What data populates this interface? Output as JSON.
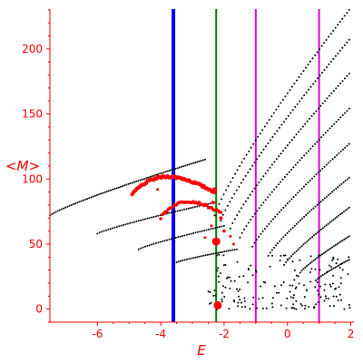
{
  "chart_data": {
    "type": "scatter",
    "title": "",
    "xlabel": "E",
    "ylabel": "<M>",
    "xlim": [
      -7.5,
      2.1
    ],
    "ylim": [
      -10,
      232
    ],
    "x_ticks": [
      -6,
      -4,
      -2,
      0,
      2
    ],
    "y_ticks": [
      0,
      50,
      100,
      150,
      200
    ],
    "grid": false,
    "colors": {
      "axis": "#ff0000",
      "black_points": "#000000",
      "red_points": "#ff0000",
      "blue_line": "#0000ff",
      "green_line": "#008000",
      "magenta_lines": "#e000e0"
    },
    "vertical_lines": [
      {
        "x": -3.6,
        "color": "#0000ff",
        "width": 4
      },
      {
        "x": -2.25,
        "color": "#008000",
        "width": 2
      },
      {
        "x": -1.0,
        "color": "#e000e0",
        "width": 2
      },
      {
        "x": 1.0,
        "color": "#e000e0",
        "width": 2
      }
    ],
    "black_curves": [
      {
        "x0": -7.5,
        "x1": -2.6,
        "y0": 72,
        "y1": 115,
        "n": 80
      },
      {
        "x0": -6.0,
        "x1": -2.3,
        "y0": 58,
        "y1": 82,
        "n": 55
      },
      {
        "x0": -4.7,
        "x1": -2.0,
        "y0": 46,
        "y1": 64,
        "n": 40
      },
      {
        "x0": -3.5,
        "x1": -1.6,
        "y0": 36,
        "y1": 46,
        "n": 30
      },
      {
        "x0": -2.3,
        "x1": 1.95,
        "y0": 72,
        "y1": 230,
        "n": 60
      },
      {
        "x0": -2.1,
        "x1": 1.95,
        "y0": 68,
        "y1": 207,
        "n": 58
      },
      {
        "x0": -1.8,
        "x1": 1.95,
        "y0": 62,
        "y1": 181,
        "n": 55
      },
      {
        "x0": -1.5,
        "x1": 1.95,
        "y0": 55,
        "y1": 154,
        "n": 52
      },
      {
        "x0": -1.1,
        "x1": 1.95,
        "y0": 48,
        "y1": 127,
        "n": 48
      },
      {
        "x0": -0.6,
        "x1": 1.95,
        "y0": 41,
        "y1": 101,
        "n": 44
      },
      {
        "x0": -0.1,
        "x1": 1.95,
        "y0": 34,
        "y1": 78,
        "n": 38
      },
      {
        "x0": 0.4,
        "x1": 1.95,
        "y0": 28,
        "y1": 56,
        "n": 30
      },
      {
        "x0": 0.9,
        "x1": 1.95,
        "y0": 22,
        "y1": 38,
        "n": 20
      }
    ],
    "scatter_cloud": {
      "xmin": -2.5,
      "xmax": 2.0,
      "ymin": 0,
      "ymax": 42,
      "n": 170
    },
    "red_curves": [
      {
        "x0": -4.9,
        "x1": -2.3,
        "y0": 88,
        "y1": 90,
        "peak": 102,
        "n": 55,
        "size": 2.2
      },
      {
        "x0": -4.0,
        "x1": -2.1,
        "y0": 70,
        "y1": 74,
        "peak": 83,
        "n": 40,
        "size": 1.8
      }
    ],
    "red_points": [
      {
        "x": -2.25,
        "y": 52,
        "size": 4.5
      },
      {
        "x": -2.2,
        "y": 3,
        "size": 4.5
      },
      {
        "x": -2.3,
        "y": 92,
        "size": 2.5
      },
      {
        "x": -2.35,
        "y": 82,
        "size": 2.0
      },
      {
        "x": -2.1,
        "y": 70,
        "size": 2.0
      },
      {
        "x": -2.0,
        "y": 60,
        "size": 1.8
      },
      {
        "x": -1.8,
        "y": 56,
        "size": 1.5
      },
      {
        "x": -1.7,
        "y": 50,
        "size": 1.5
      },
      {
        "x": -2.4,
        "y": 64,
        "size": 1.5
      },
      {
        "x": -2.6,
        "y": 55,
        "size": 1.5
      },
      {
        "x": -4.1,
        "y": 92,
        "size": 1.5
      }
    ]
  }
}
